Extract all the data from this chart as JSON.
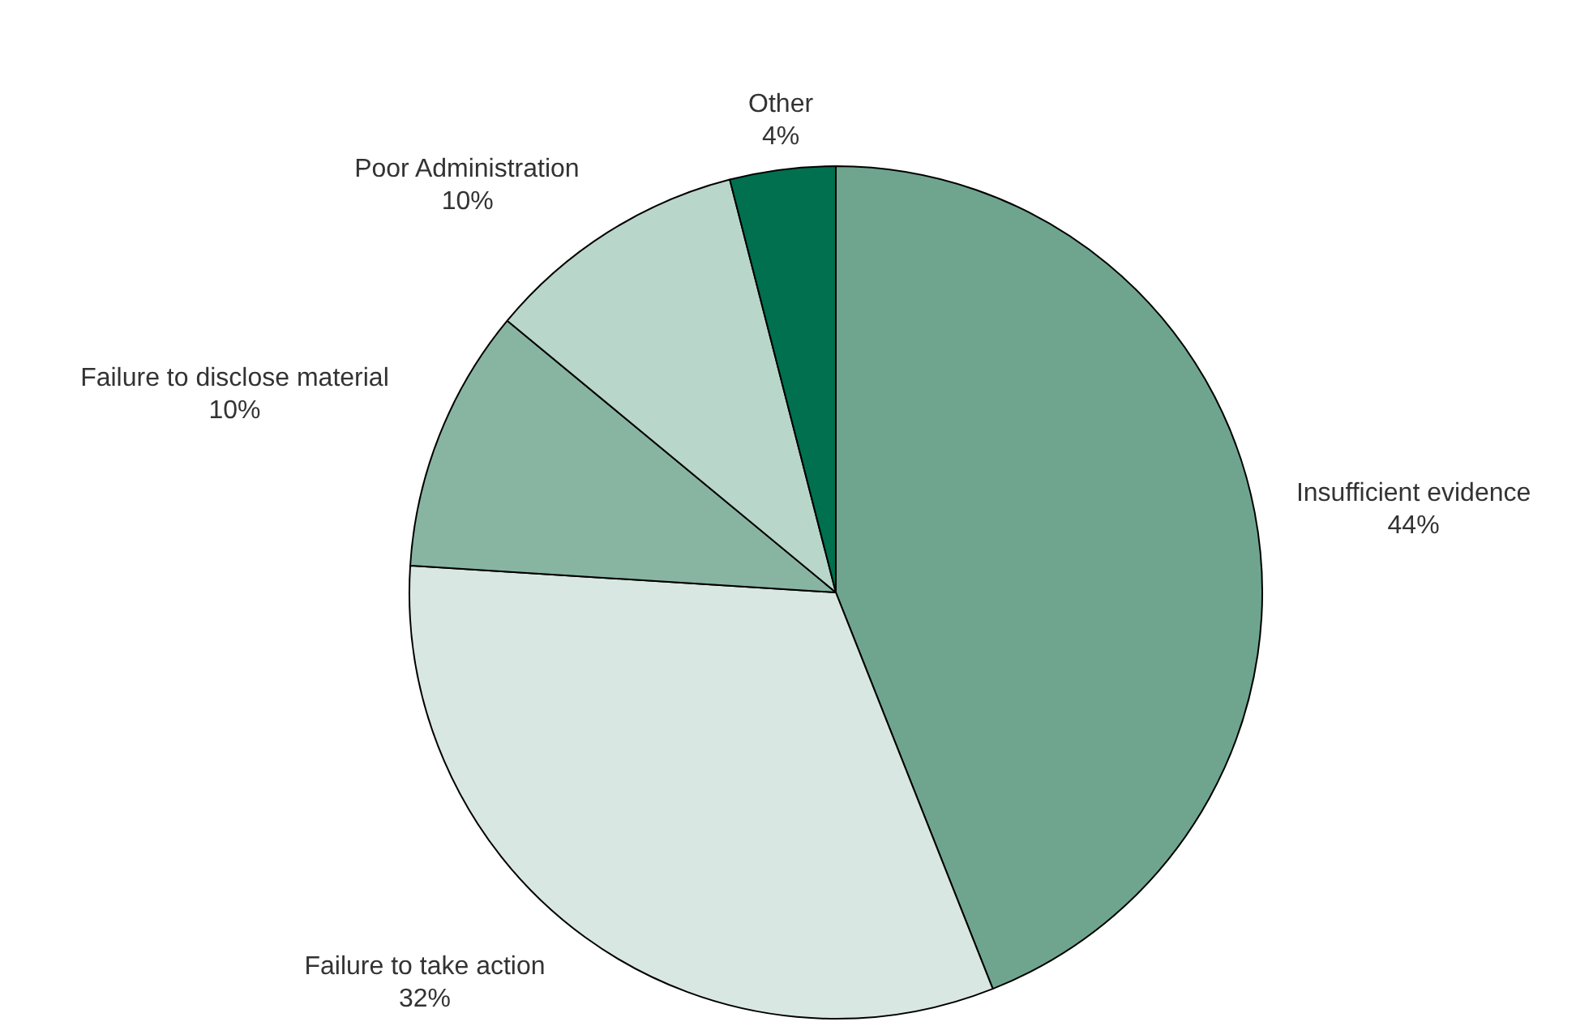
{
  "chart_data": {
    "type": "pie",
    "categories": [
      "Insufficient evidence",
      "Failure to take action",
      "Failure to disclose material",
      "Poor Administration",
      "Other"
    ],
    "values": [
      44,
      32,
      10,
      10,
      4
    ],
    "value_labels": [
      "44%",
      "32%",
      "10%",
      "10%",
      "4%"
    ],
    "colors": [
      "#6fa58f",
      "#d9e7e2",
      "#88b5a2",
      "#b9d6ca",
      "#00704f"
    ]
  }
}
